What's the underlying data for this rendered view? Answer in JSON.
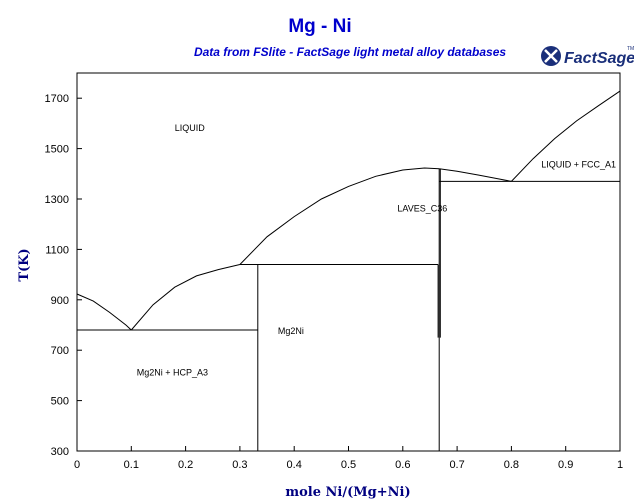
{
  "header": {
    "title": "Mg - Ni",
    "subtitle": "Data from FSlite - FactSage light metal alloy databases",
    "logo_text": "FactSage",
    "logo_tm": "TM"
  },
  "chart_data": {
    "type": "line",
    "title": "Mg - Ni",
    "subtitle": "Data from FSlite - FactSage light metal alloy databases",
    "xlabel": "mole Ni/(Mg+Ni)",
    "ylabel": "T(K)",
    "xlim": [
      0,
      1
    ],
    "ylim": [
      300,
      1800
    ],
    "xticks": [
      0,
      0.1,
      0.2,
      0.3,
      0.4,
      0.5,
      0.6,
      0.7,
      0.8,
      0.9,
      1
    ],
    "xtick_labels": [
      "0",
      "0.1",
      "0.2",
      "0.3",
      "0.4",
      "0.5",
      "0.6",
      "0.7",
      "0.8",
      "0.9",
      "1"
    ],
    "yticks": [
      300,
      500,
      700,
      900,
      1100,
      1300,
      1500,
      1700
    ],
    "ytick_labels": [
      "300",
      "500",
      "700",
      "900",
      "1100",
      "1300",
      "1500",
      "1700"
    ],
    "grid": false,
    "series": [
      {
        "x": [
          0,
          0.03,
          0.06,
          0.09,
          0.1
        ],
        "y": [
          923,
          895,
          850,
          800,
          780
        ]
      },
      {
        "x": [
          0.1,
          0.14,
          0.18,
          0.22,
          0.26,
          0.3
        ],
        "y": [
          780,
          880,
          950,
          995,
          1020,
          1040
        ]
      },
      {
        "x": [
          0.3,
          0.35,
          0.4,
          0.45,
          0.5,
          0.55,
          0.6,
          0.64,
          0.667
        ],
        "y": [
          1040,
          1150,
          1230,
          1300,
          1350,
          1390,
          1415,
          1423,
          1420
        ]
      },
      {
        "x": [
          0.667,
          0.7,
          0.74,
          0.78,
          0.8
        ],
        "y": [
          1420,
          1410,
          1395,
          1378,
          1370
        ]
      },
      {
        "x": [
          0.8,
          0.84,
          0.88,
          0.92,
          0.96,
          1
        ],
        "y": [
          1370,
          1460,
          1540,
          1610,
          1670,
          1728
        ]
      },
      {
        "x": [
          0,
          0.333
        ],
        "y": [
          780,
          780
        ]
      },
      {
        "x": [
          0.3,
          0.665
        ],
        "y": [
          1040,
          1040
        ]
      },
      {
        "x": [
          0.333,
          0.333
        ],
        "y": [
          300,
          1040
        ]
      },
      {
        "x": [
          0.667,
          1
        ],
        "y": [
          1370,
          1370
        ]
      },
      {
        "x": [
          0.665,
          0.665
        ],
        "y": [
          750,
          1040
        ]
      },
      {
        "x": [
          0.667,
          0.667
        ],
        "y": [
          300,
          1420
        ]
      },
      {
        "x": [
          0.669,
          0.669
        ],
        "y": [
          750,
          1420
        ]
      }
    ],
    "regions": [
      {
        "label": "LIQUID",
        "x": 0.18,
        "y": 1570
      },
      {
        "label": "LIQUID + FCC_A1",
        "x": 0.855,
        "y": 1425
      },
      {
        "label": "LAVES_C36",
        "x": 0.59,
        "y": 1250
      },
      {
        "label": "Mg2Ni",
        "x": 0.37,
        "y": 765
      },
      {
        "label": "Mg2Ni + HCP_A3",
        "x": 0.11,
        "y": 600
      }
    ]
  }
}
